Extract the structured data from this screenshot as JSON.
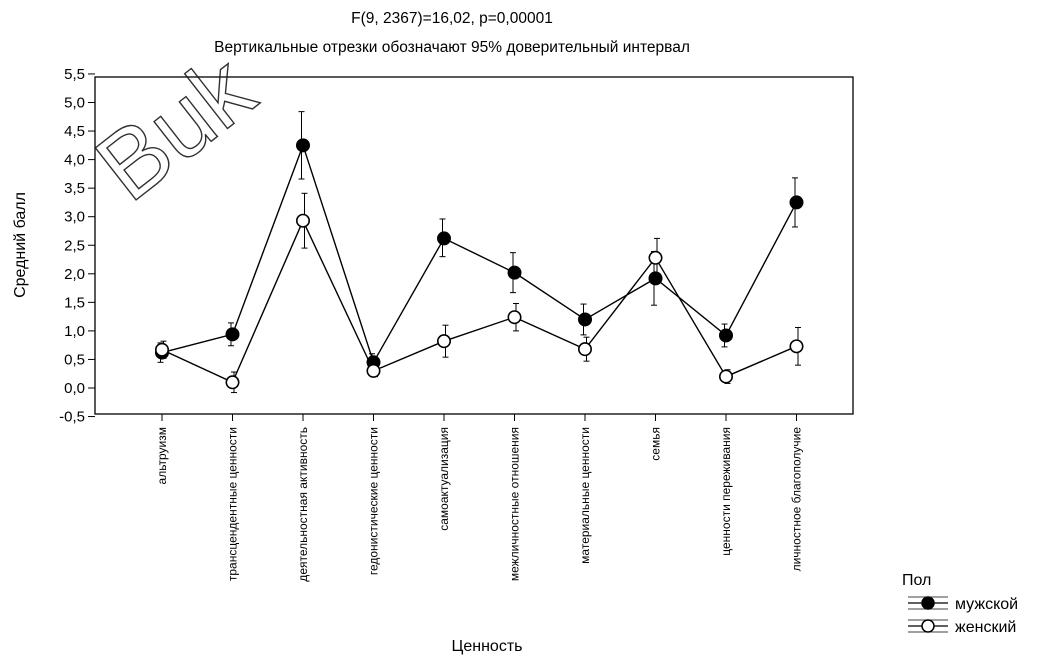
{
  "chart_data": {
    "type": "line",
    "title": "F(9, 2367)=16,02, p=0,00001",
    "subtitle": "Вертикальные отрезки обозначают 95% доверительный интервал",
    "xlabel": "Ценность",
    "ylabel": "Средний балл",
    "ylim": [
      -0.5,
      5.5
    ],
    "ytick_step": 0.5,
    "yticks": [
      "-0,5",
      "0,0",
      "0,5",
      "1,0",
      "1,5",
      "2,0",
      "2,5",
      "3,0",
      "3,5",
      "4,0",
      "4,5",
      "5,0",
      "5,5"
    ],
    "grid": false,
    "legend_position": "bottom-right",
    "legend_title": "Пол",
    "categories": [
      "альтруизм",
      "трансцендентные ценности",
      "деятельностная активность",
      "гедонистические ценности",
      "самоактуализация",
      "межличностные отношения",
      "материальные ценности",
      "семья",
      "ценности переживания",
      "личностное благополучие"
    ],
    "series": [
      {
        "name": "мужской",
        "marker": "filled",
        "color": "#000000",
        "values": [
          0.62,
          0.94,
          4.25,
          0.45,
          2.62,
          2.02,
          1.2,
          1.92,
          0.92,
          3.25
        ],
        "ci_low": [
          0.45,
          0.74,
          3.66,
          0.3,
          2.3,
          1.67,
          0.93,
          1.45,
          0.72,
          2.82
        ],
        "ci_high": [
          0.79,
          1.14,
          4.84,
          0.6,
          2.96,
          2.37,
          1.47,
          2.39,
          1.12,
          3.68
        ]
      },
      {
        "name": "женский",
        "marker": "open",
        "color": "#ffffff",
        "values": [
          0.67,
          0.1,
          2.93,
          0.3,
          0.82,
          1.24,
          0.68,
          2.28,
          0.2,
          0.73
        ],
        "ci_low": [
          0.52,
          -0.08,
          2.45,
          0.2,
          0.54,
          1.0,
          0.47,
          1.94,
          0.08,
          0.4
        ],
        "ci_high": [
          0.82,
          0.28,
          3.41,
          0.4,
          1.1,
          1.48,
          0.89,
          2.62,
          0.32,
          1.06
        ]
      }
    ],
    "watermark": "Buk"
  }
}
